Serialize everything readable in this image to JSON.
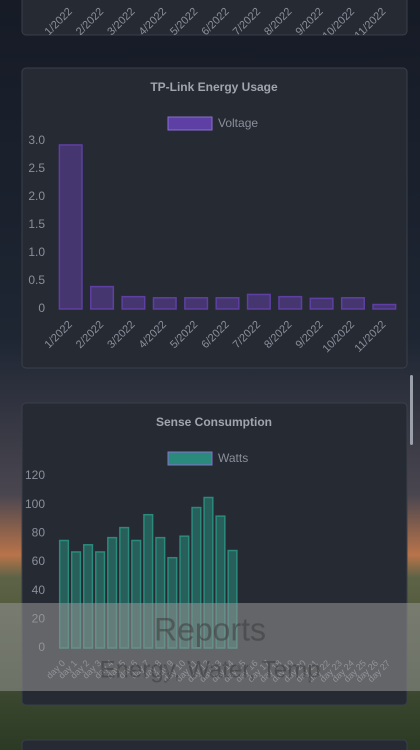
{
  "chart_data": [
    {
      "type": "bar",
      "title": "TP-Link Energy Usage",
      "categories": [
        "1/2022",
        "2/2022",
        "3/2022",
        "4/2022",
        "5/2022",
        "6/2022",
        "7/2022",
        "8/2022",
        "9/2022",
        "10/2022",
        "11/2022"
      ],
      "series": [
        {
          "name": "Voltage",
          "color": "#5e3fa3",
          "values": [
            2.93,
            0.4,
            0.22,
            0.2,
            0.2,
            0.2,
            0.26,
            0.22,
            0.19,
            0.2,
            0.08
          ]
        }
      ],
      "ylim": [
        0,
        3
      ],
      "yticks": [
        0,
        {
          "value": 0.5,
          "label": "0.5"
        },
        {
          "value": 1,
          "label": "1.0"
        },
        {
          "value": 1.5,
          "label": "1.5"
        },
        {
          "value": 2,
          "label": "2.0"
        },
        {
          "value": 2.5,
          "label": "2.5"
        },
        {
          "value": 3,
          "label": "3.0"
        }
      ]
    },
    {
      "type": "bar",
      "title": "Sense Consumption",
      "categories": [
        "day 0",
        "day 1",
        "day 2",
        "day 3",
        "day 4",
        "day 5",
        "day 6",
        "day 7",
        "day 8",
        "day 9",
        "day 10",
        "day 11",
        "day 12",
        "day 13",
        "day 14",
        "day 15",
        "day 16",
        "day 17",
        "day 18",
        "day 19",
        "day 20",
        "day 21",
        "day 22",
        "day 23",
        "day 24",
        "day 25",
        "day 26",
        "day 27"
      ],
      "series": [
        {
          "name": "Watts",
          "color": "#2a8a7c",
          "values": [
            75,
            67,
            72,
            67,
            77,
            84,
            75,
            93,
            77,
            63,
            78,
            98,
            105,
            92,
            68,
            null,
            null,
            null,
            null,
            null,
            null,
            null,
            null,
            null,
            null,
            null,
            null,
            null
          ]
        }
      ],
      "ylim": [
        0,
        120
      ],
      "yticks": [
        0,
        20,
        40,
        60,
        80,
        100,
        120
      ]
    }
  ],
  "top_card": {
    "categories": [
      "1/2022",
      "2/2022",
      "3/2022",
      "4/2022",
      "5/2022",
      "6/2022",
      "7/2022",
      "8/2022",
      "9/2022",
      "10/2022",
      "11/2022"
    ]
  },
  "overlay": {
    "title": "Reports",
    "subtitle": "Energy, Water, Temp"
  }
}
